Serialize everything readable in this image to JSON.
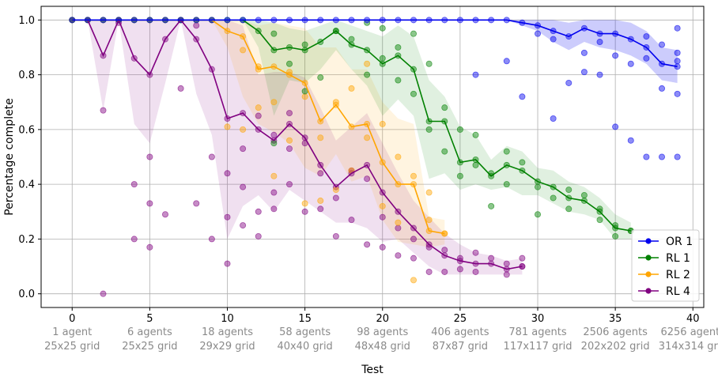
{
  "chart_data": {
    "type": "line",
    "title": "",
    "xlabel": "Test",
    "ylabel": "Percentage complete",
    "xlim": [
      -2,
      40.7
    ],
    "ylim": [
      -0.05,
      1.05
    ],
    "xticks": [
      0,
      5,
      10,
      15,
      20,
      25,
      30,
      35,
      40
    ],
    "yticks": [
      0.0,
      0.2,
      0.4,
      0.6,
      0.8,
      1.0
    ],
    "ytick_labels": [
      "0.0",
      "0.2",
      "0.4",
      "0.6",
      "0.8",
      "1.0"
    ],
    "grid": true,
    "legend_position": "bottom-right",
    "annotations": [
      {
        "x": 0,
        "line1": "1 agent",
        "line2": "25x25 grid"
      },
      {
        "x": 5,
        "line1": "6 agents",
        "line2": "25x25 grid"
      },
      {
        "x": 10,
        "line1": "18 agents",
        "line2": "29x29 grid"
      },
      {
        "x": 15,
        "line1": "58 agents",
        "line2": "40x40 grid"
      },
      {
        "x": 20,
        "line1": "98 agents",
        "line2": "48x48 grid"
      },
      {
        "x": 25,
        "line1": "406 agents",
        "line2": "87x87 grid"
      },
      {
        "x": 30,
        "line1": "781 agents",
        "line2": "117x117 grid"
      },
      {
        "x": 35,
        "line1": "2506 agents",
        "line2": "202x202 grid"
      },
      {
        "x": 40,
        "line1": "6256 agents",
        "line2": "314x314 grid"
      }
    ],
    "series": [
      {
        "name": "OR 1",
        "color": "#0000ee",
        "x": [
          0,
          1,
          2,
          3,
          4,
          5,
          6,
          7,
          8,
          9,
          10,
          11,
          12,
          13,
          14,
          15,
          16,
          17,
          18,
          19,
          20,
          21,
          22,
          23,
          24,
          25,
          26,
          27,
          28,
          29,
          30,
          31,
          32,
          33,
          34,
          35,
          36,
          37,
          38,
          39
        ],
        "mean": [
          1,
          1,
          1,
          1,
          1,
          1,
          1,
          1,
          1,
          1,
          1,
          1,
          1,
          1,
          1,
          1,
          1,
          1,
          1,
          1,
          1,
          1,
          1,
          1,
          1,
          1,
          1,
          1,
          1,
          0.99,
          0.98,
          0.96,
          0.94,
          0.97,
          0.95,
          0.95,
          0.93,
          0.9,
          0.84,
          0.83
        ],
        "lower": [
          1,
          1,
          1,
          1,
          1,
          1,
          1,
          1,
          1,
          1,
          1,
          1,
          1,
          1,
          1,
          1,
          1,
          1,
          1,
          1,
          1,
          1,
          1,
          1,
          1,
          1,
          1,
          1,
          1,
          0.98,
          0.96,
          0.92,
          0.89,
          0.92,
          0.9,
          0.89,
          0.87,
          0.84,
          0.78,
          0.77
        ],
        "upper": [
          1,
          1,
          1,
          1,
          1,
          1,
          1,
          1,
          1,
          1,
          1,
          1,
          1,
          1,
          1,
          1,
          1,
          1,
          1,
          1,
          1,
          1,
          1,
          1,
          1,
          1,
          1,
          1,
          1,
          1,
          1,
          1,
          0.99,
          1,
          1,
          1,
          0.99,
          0.96,
          0.9,
          0.89
        ],
        "scatter": [
          [
            26,
            0.8
          ],
          [
            28,
            0.85
          ],
          [
            29,
            0.72
          ],
          [
            31,
            0.64
          ],
          [
            32,
            0.77
          ],
          [
            33,
            0.81
          ],
          [
            34,
            0.8
          ],
          [
            35,
            0.61
          ],
          [
            36,
            0.56
          ],
          [
            37,
            0.5
          ],
          [
            38,
            0.5
          ],
          [
            38,
            0.75
          ],
          [
            39,
            0.5
          ],
          [
            39,
            0.73
          ],
          [
            39,
            0.97
          ],
          [
            36,
            0.84
          ],
          [
            37,
            0.86
          ],
          [
            35,
            0.87
          ],
          [
            33,
            0.88
          ],
          [
            31,
            0.93
          ],
          [
            30,
            0.95
          ],
          [
            34,
            0.92
          ],
          [
            37,
            0.94
          ],
          [
            38,
            0.91
          ],
          [
            39,
            0.88
          ],
          [
            39,
            0.85
          ]
        ]
      },
      {
        "name": "RL 1",
        "color": "#008000",
        "x": [
          0,
          1,
          2,
          3,
          4,
          5,
          6,
          7,
          8,
          9,
          10,
          11,
          12,
          13,
          14,
          15,
          16,
          17,
          18,
          19,
          20,
          21,
          22,
          23,
          24,
          25,
          26,
          27,
          28,
          29,
          30,
          31,
          32,
          33,
          34,
          35,
          36
        ],
        "mean": [
          1,
          1,
          1,
          1,
          1,
          1,
          1,
          1,
          1,
          1,
          1,
          1,
          0.96,
          0.89,
          0.9,
          0.89,
          0.92,
          0.96,
          0.91,
          0.89,
          0.84,
          0.87,
          0.82,
          0.63,
          0.63,
          0.48,
          0.49,
          0.43,
          0.47,
          0.45,
          0.41,
          0.39,
          0.35,
          0.34,
          0.3,
          0.24,
          0.23
        ],
        "lower": [
          1,
          1,
          1,
          1,
          1,
          1,
          1,
          1,
          1,
          1,
          1,
          1,
          0.9,
          0.65,
          0.78,
          0.77,
          0.82,
          0.89,
          0.82,
          0.76,
          0.65,
          0.71,
          0.65,
          0.42,
          0.44,
          0.38,
          0.4,
          0.38,
          0.39,
          0.36,
          0.36,
          0.33,
          0.3,
          0.29,
          0.27,
          0.2,
          0.2
        ],
        "upper": [
          1,
          1,
          1,
          1,
          1,
          1,
          1,
          1,
          1,
          1,
          1,
          1,
          1,
          0.99,
          0.97,
          0.96,
          0.98,
          1,
          0.98,
          0.96,
          0.94,
          0.98,
          0.94,
          0.78,
          0.72,
          0.61,
          0.58,
          0.49,
          0.54,
          0.52,
          0.46,
          0.45,
          0.41,
          0.39,
          0.35,
          0.29,
          0.26
        ],
        "scatter": [
          [
            13,
            0.55
          ],
          [
            13,
            0.95
          ],
          [
            14,
            0.84
          ],
          [
            15,
            0.91
          ],
          [
            15,
            0.74
          ],
          [
            16,
            0.79
          ],
          [
            17,
            0.96
          ],
          [
            18,
            0.93
          ],
          [
            19,
            0.99
          ],
          [
            19,
            0.8
          ],
          [
            20,
            0.97
          ],
          [
            20,
            0.86
          ],
          [
            21,
            0.9
          ],
          [
            21,
            0.78
          ],
          [
            22,
            0.95
          ],
          [
            22,
            0.73
          ],
          [
            23,
            0.84
          ],
          [
            23,
            0.6
          ],
          [
            24,
            0.68
          ],
          [
            24,
            0.52
          ],
          [
            25,
            0.6
          ],
          [
            25,
            0.43
          ],
          [
            26,
            0.58
          ],
          [
            26,
            0.47
          ],
          [
            27,
            0.44
          ],
          [
            27,
            0.32
          ],
          [
            28,
            0.52
          ],
          [
            28,
            0.4
          ],
          [
            29,
            0.48
          ],
          [
            30,
            0.39
          ],
          [
            30,
            0.29
          ],
          [
            31,
            0.35
          ],
          [
            32,
            0.38
          ],
          [
            32,
            0.31
          ],
          [
            33,
            0.36
          ],
          [
            34,
            0.31
          ],
          [
            34,
            0.27
          ],
          [
            35,
            0.25
          ],
          [
            35,
            0.21
          ],
          [
            36,
            0.23
          ]
        ]
      },
      {
        "name": "RL 2",
        "color": "#ffa500",
        "x": [
          0,
          1,
          2,
          3,
          4,
          5,
          6,
          7,
          8,
          9,
          10,
          11,
          12,
          13,
          14,
          15,
          16,
          17,
          18,
          19,
          20,
          21,
          22,
          23,
          24
        ],
        "mean": [
          1,
          1,
          1,
          1,
          1,
          1,
          1,
          1,
          1,
          1,
          0.96,
          0.94,
          0.82,
          0.83,
          0.8,
          0.77,
          0.63,
          0.69,
          0.61,
          0.62,
          0.48,
          0.4,
          0.4,
          0.23,
          0.22
        ],
        "lower": [
          1,
          1,
          1,
          1,
          1,
          1,
          1,
          1,
          1,
          1,
          0.9,
          0.72,
          0.62,
          0.59,
          0.55,
          0.46,
          0.43,
          0.51,
          0.41,
          0.43,
          0.27,
          0.19,
          0.18,
          0.17,
          0.18
        ],
        "upper": [
          1,
          1,
          1,
          1,
          1,
          1,
          1,
          1,
          1,
          1,
          1,
          1,
          0.98,
          0.99,
          0.98,
          0.97,
          0.9,
          0.9,
          0.82,
          0.82,
          0.7,
          0.64,
          0.62,
          0.28,
          0.27
        ],
        "scatter": [
          [
            10,
            0.61
          ],
          [
            11,
            0.89
          ],
          [
            11,
            0.6
          ],
          [
            12,
            0.83
          ],
          [
            12,
            0.68
          ],
          [
            13,
            0.43
          ],
          [
            13,
            0.7
          ],
          [
            14,
            0.81
          ],
          [
            14,
            0.56
          ],
          [
            15,
            0.72
          ],
          [
            15,
            0.33
          ],
          [
            16,
            0.57
          ],
          [
            16,
            0.34
          ],
          [
            17,
            0.7
          ],
          [
            17,
            0.38
          ],
          [
            18,
            0.75
          ],
          [
            18,
            0.45
          ],
          [
            19,
            0.84
          ],
          [
            19,
            0.57
          ],
          [
            20,
            0.62
          ],
          [
            20,
            0.32
          ],
          [
            21,
            0.5
          ],
          [
            21,
            0.26
          ],
          [
            22,
            0.43
          ],
          [
            22,
            0.05
          ],
          [
            23,
            0.27
          ],
          [
            23,
            0.37
          ],
          [
            24,
            0.22
          ]
        ]
      },
      {
        "name": "RL 4",
        "color": "#800080",
        "x": [
          0,
          1,
          2,
          3,
          4,
          5,
          6,
          7,
          8,
          9,
          10,
          11,
          12,
          13,
          14,
          15,
          16,
          17,
          18,
          19,
          20,
          21,
          22,
          23,
          24,
          25,
          26,
          27,
          28,
          29
        ],
        "mean": [
          1,
          1,
          0.87,
          1,
          0.86,
          0.8,
          0.93,
          1,
          0.93,
          0.82,
          0.64,
          0.66,
          0.6,
          0.56,
          0.62,
          0.57,
          0.47,
          0.39,
          0.44,
          0.47,
          0.37,
          0.3,
          0.24,
          0.18,
          0.14,
          0.12,
          0.11,
          0.11,
          0.09,
          0.1
        ],
        "lower": [
          1,
          1,
          0.67,
          1,
          0.62,
          0.55,
          0.77,
          1,
          0.73,
          0.58,
          0.2,
          0.32,
          0.36,
          0.3,
          0.38,
          0.34,
          0.3,
          0.26,
          0.26,
          0.24,
          0.19,
          0.2,
          0.15,
          0.1,
          0.07,
          0.07,
          0.07,
          0.07,
          0.07,
          0.07
        ],
        "upper": [
          1,
          1,
          1,
          1,
          1,
          1,
          1,
          1,
          1,
          1,
          1,
          0.98,
          0.8,
          0.81,
          0.81,
          0.79,
          0.68,
          0.56,
          0.61,
          0.66,
          0.55,
          0.44,
          0.34,
          0.28,
          0.22,
          0.18,
          0.15,
          0.14,
          0.12,
          0.13
        ],
        "scatter": [
          [
            2,
            0.67
          ],
          [
            2,
            0.0
          ],
          [
            4,
            0.4
          ],
          [
            4,
            0.2
          ],
          [
            5,
            0.5
          ],
          [
            5,
            0.33
          ],
          [
            5,
            0.17
          ],
          [
            6,
            0.29
          ],
          [
            8,
            0.33
          ],
          [
            9,
            0.5
          ],
          [
            9,
            0.2
          ],
          [
            10,
            0.44
          ],
          [
            10,
            0.28
          ],
          [
            10,
            0.11
          ],
          [
            11,
            0.53
          ],
          [
            11,
            0.39
          ],
          [
            11,
            0.25
          ],
          [
            12,
            0.65
          ],
          [
            12,
            0.3
          ],
          [
            12,
            0.21
          ],
          [
            13,
            0.58
          ],
          [
            13,
            0.37
          ],
          [
            13,
            0.31
          ],
          [
            14,
            0.66
          ],
          [
            14,
            0.53
          ],
          [
            14,
            0.4
          ],
          [
            15,
            0.55
          ],
          [
            15,
            0.3
          ],
          [
            16,
            0.44
          ],
          [
            16,
            0.31
          ],
          [
            17,
            0.35
          ],
          [
            17,
            0.21
          ],
          [
            18,
            0.45
          ],
          [
            18,
            0.27
          ],
          [
            19,
            0.42
          ],
          [
            19,
            0.18
          ],
          [
            20,
            0.28
          ],
          [
            20,
            0.17
          ],
          [
            21,
            0.24
          ],
          [
            21,
            0.14
          ],
          [
            22,
            0.2
          ],
          [
            22,
            0.13
          ],
          [
            23,
            0.17
          ],
          [
            23,
            0.08
          ],
          [
            24,
            0.16
          ],
          [
            24,
            0.08
          ],
          [
            25,
            0.13
          ],
          [
            25,
            0.09
          ],
          [
            26,
            0.15
          ],
          [
            26,
            0.08
          ],
          [
            27,
            0.13
          ],
          [
            28,
            0.11
          ],
          [
            28,
            0.07
          ],
          [
            29,
            0.13
          ],
          [
            29,
            0.1
          ],
          [
            7,
            0.75
          ],
          [
            3,
            0.99
          ],
          [
            8,
            0.98
          ]
        ]
      }
    ]
  }
}
